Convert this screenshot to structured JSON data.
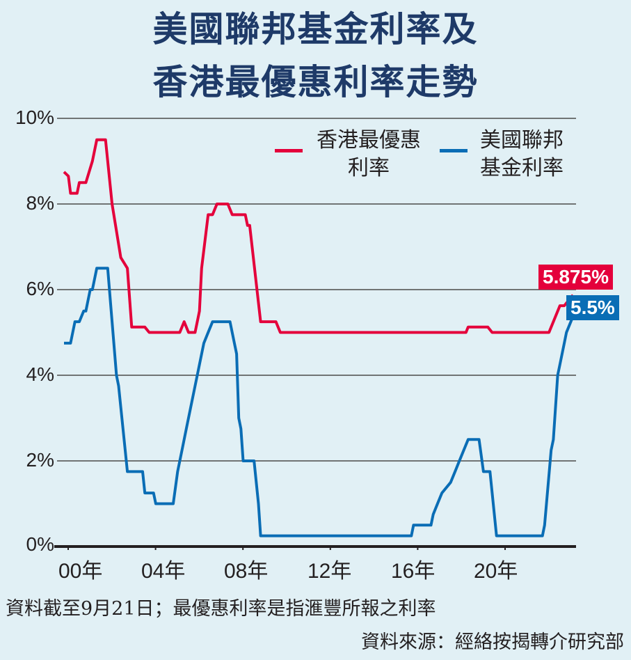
{
  "title": {
    "line1": "美國聯邦基金利率及",
    "line2": "香港最優惠利率走勢"
  },
  "legend": {
    "hk_prime": {
      "line1": "香港最優惠",
      "line2": "利率",
      "color": "#e4003b"
    },
    "fed_funds": {
      "line1": "美國聯邦",
      "line2": "基金利率",
      "color": "#0a6db5"
    }
  },
  "badges": {
    "hk_prime": "5.875%",
    "fed_funds": "5.5%"
  },
  "footnote": "資料截至9月21日；最優惠利率是指滙豐所報之利率",
  "source": "資料來源：經絡按揭轉介研究部",
  "chart_data": {
    "type": "line",
    "title": "美國聯邦基金利率及香港最優惠利率走勢",
    "xlabel": "",
    "ylabel": "",
    "yticks": [
      "0%",
      "2%",
      "4%",
      "6%",
      "8%",
      "10%"
    ],
    "xticks": [
      "00年",
      "04年",
      "08年",
      "12年",
      "16年",
      "20年"
    ],
    "ylim": [
      0,
      10
    ],
    "xlim": [
      2000,
      2023.8
    ],
    "grid": true,
    "legend_position": "top-right",
    "series": [
      {
        "name": "香港最優惠利率",
        "color": "#e4003b",
        "points": [
          [
            2000.0,
            8.75
          ],
          [
            2000.2,
            8.65
          ],
          [
            2000.3,
            8.25
          ],
          [
            2000.6,
            8.25
          ],
          [
            2000.7,
            8.5
          ],
          [
            2001.0,
            8.5
          ],
          [
            2001.3,
            9.0
          ],
          [
            2001.5,
            9.5
          ],
          [
            2001.9,
            9.5
          ],
          [
            2002.2,
            8.0
          ],
          [
            2002.6,
            6.75
          ],
          [
            2002.9,
            6.5
          ],
          [
            2003.1,
            5.125
          ],
          [
            2003.7,
            5.125
          ],
          [
            2003.9,
            5.0
          ],
          [
            2005.3,
            5.0
          ],
          [
            2005.5,
            5.25
          ],
          [
            2005.7,
            5.0
          ],
          [
            2006.0,
            5.0
          ],
          [
            2006.2,
            5.5
          ],
          [
            2006.3,
            6.5
          ],
          [
            2006.6,
            7.75
          ],
          [
            2006.8,
            7.75
          ],
          [
            2007.0,
            8.0
          ],
          [
            2007.5,
            8.0
          ],
          [
            2007.7,
            7.75
          ],
          [
            2008.3,
            7.75
          ],
          [
            2008.4,
            7.5
          ],
          [
            2008.5,
            7.5
          ],
          [
            2009.0,
            5.25
          ],
          [
            2009.7,
            5.25
          ],
          [
            2009.9,
            5.0
          ],
          [
            2018.4,
            5.0
          ],
          [
            2018.5,
            5.125
          ],
          [
            2019.4,
            5.125
          ],
          [
            2019.6,
            5.0
          ],
          [
            2022.2,
            5.0
          ],
          [
            2022.7,
            5.625
          ],
          [
            2022.9,
            5.625
          ],
          [
            2023.3,
            5.875
          ]
        ]
      },
      {
        "name": "美國聯邦基金利率",
        "color": "#0a6db5",
        "points": [
          [
            2000.0,
            4.75
          ],
          [
            2000.3,
            4.75
          ],
          [
            2000.5,
            5.25
          ],
          [
            2000.7,
            5.25
          ],
          [
            2000.9,
            5.5
          ],
          [
            2001.0,
            5.5
          ],
          [
            2001.2,
            6.0
          ],
          [
            2001.3,
            6.0
          ],
          [
            2001.5,
            6.5
          ],
          [
            2002.0,
            6.5
          ],
          [
            2002.4,
            4.0
          ],
          [
            2002.5,
            3.75
          ],
          [
            2002.9,
            1.75
          ],
          [
            2003.6,
            1.75
          ],
          [
            2003.7,
            1.25
          ],
          [
            2004.1,
            1.25
          ],
          [
            2004.2,
            1.0
          ],
          [
            2005.0,
            1.0
          ],
          [
            2005.2,
            1.75
          ],
          [
            2005.4,
            2.25
          ],
          [
            2005.6,
            2.75
          ],
          [
            2005.8,
            3.25
          ],
          [
            2006.0,
            3.75
          ],
          [
            2006.2,
            4.25
          ],
          [
            2006.4,
            4.75
          ],
          [
            2006.6,
            5.0
          ],
          [
            2006.8,
            5.25
          ],
          [
            2007.6,
            5.25
          ],
          [
            2007.8,
            4.75
          ],
          [
            2007.9,
            4.5
          ],
          [
            2008.0,
            3.0
          ],
          [
            2008.1,
            2.75
          ],
          [
            2008.2,
            2.0
          ],
          [
            2008.7,
            2.0
          ],
          [
            2008.9,
            1.0
          ],
          [
            2009.0,
            0.25
          ],
          [
            2015.9,
            0.25
          ],
          [
            2016.0,
            0.5
          ],
          [
            2016.8,
            0.5
          ],
          [
            2016.9,
            0.75
          ],
          [
            2017.1,
            1.0
          ],
          [
            2017.3,
            1.25
          ],
          [
            2017.7,
            1.5
          ],
          [
            2017.9,
            1.75
          ],
          [
            2018.1,
            2.0
          ],
          [
            2018.3,
            2.25
          ],
          [
            2018.5,
            2.5
          ],
          [
            2019.0,
            2.5
          ],
          [
            2019.2,
            1.75
          ],
          [
            2019.5,
            1.75
          ],
          [
            2019.8,
            0.25
          ],
          [
            2021.9,
            0.25
          ],
          [
            2022.0,
            0.5
          ],
          [
            2022.3,
            2.25
          ],
          [
            2022.4,
            2.5
          ],
          [
            2022.6,
            4.0
          ],
          [
            2022.7,
            4.25
          ],
          [
            2022.9,
            4.75
          ],
          [
            2023.0,
            5.0
          ],
          [
            2023.2,
            5.25
          ],
          [
            2023.4,
            5.5
          ]
        ]
      }
    ]
  }
}
